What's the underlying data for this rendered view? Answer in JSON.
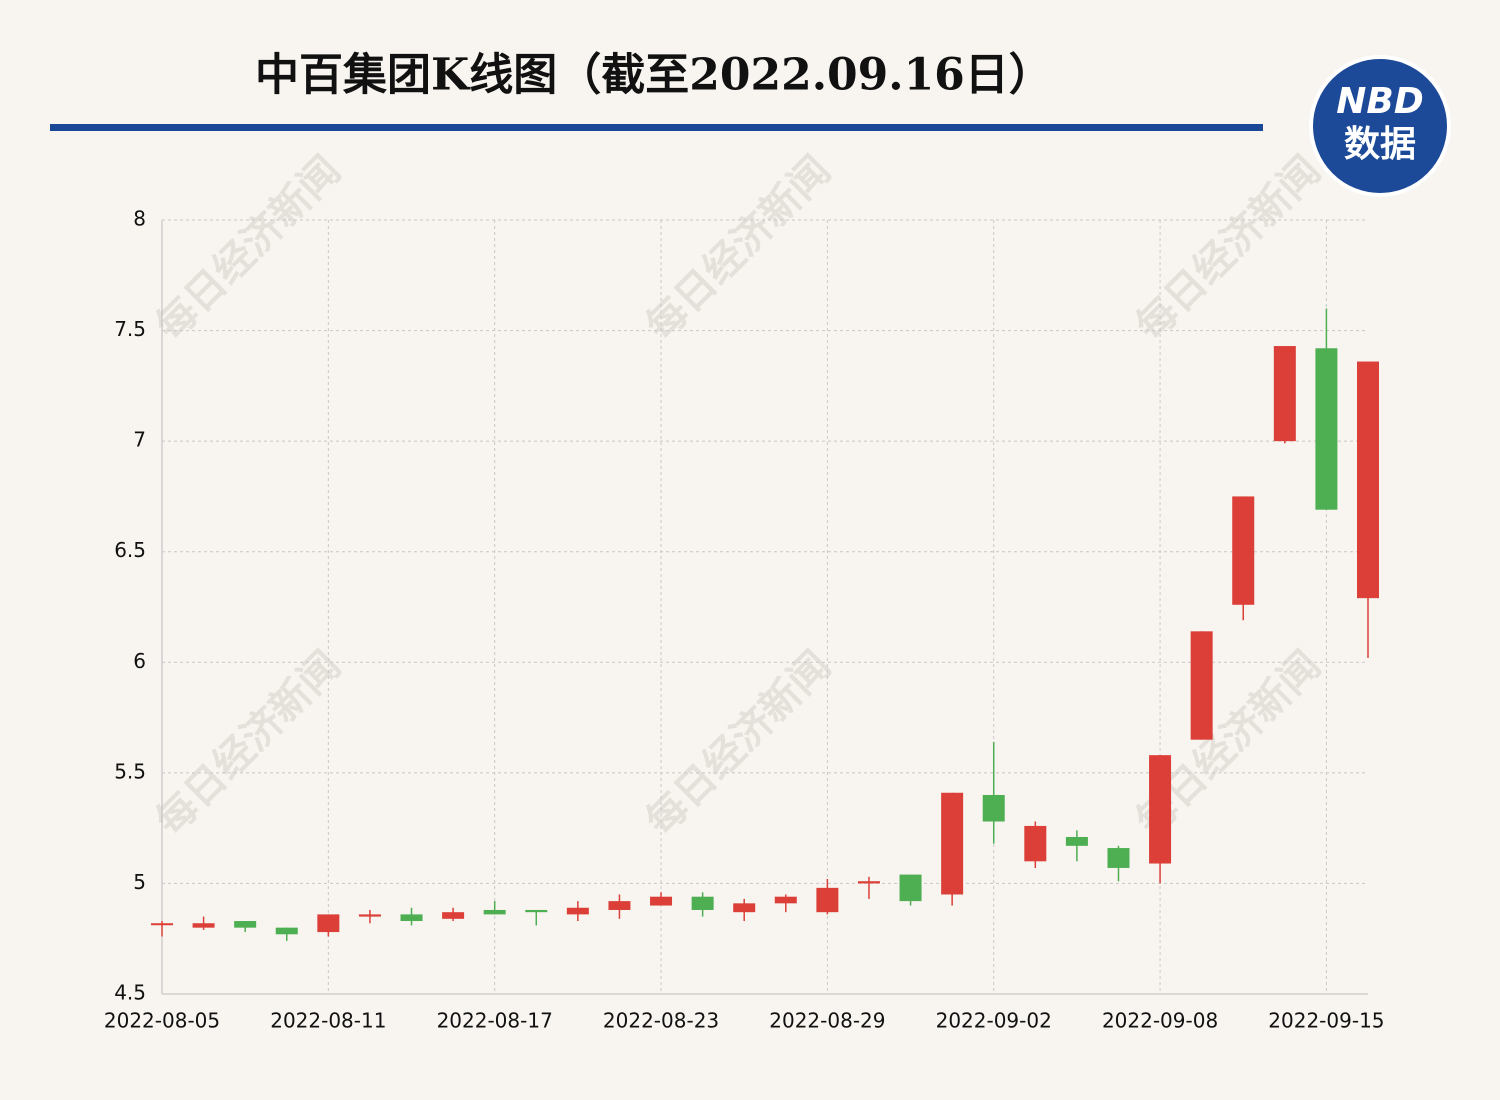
{
  "chart_data": {
    "type": "candlestick",
    "title": "中百集团K线图（截至2022.09.16日）",
    "logo": {
      "top": "NBD",
      "bottom": "数据"
    },
    "watermark": "每日经济新闻",
    "categories": [
      "2022-08-05",
      null,
      null,
      null,
      "2022-08-11",
      null,
      null,
      null,
      "2022-08-17",
      null,
      null,
      null,
      "2022-08-23",
      null,
      null,
      null,
      "2022-08-29",
      null,
      null,
      null,
      "2022-09-02",
      null,
      null,
      null,
      "2022-09-08",
      null,
      null,
      null,
      "2022-09-15",
      null
    ],
    "open": [
      4.82,
      4.8,
      4.83,
      4.8,
      4.78,
      4.85,
      4.86,
      4.84,
      4.88,
      4.88,
      4.86,
      4.88,
      4.9,
      4.94,
      4.87,
      4.91,
      4.87,
      5.0,
      5.04,
      4.95,
      5.4,
      5.1,
      5.21,
      5.16,
      5.09,
      5.65,
      6.26,
      7.0,
      7.42,
      6.29
    ],
    "high": [
      4.83,
      4.85,
      4.83,
      4.8,
      4.86,
      4.88,
      4.89,
      4.89,
      4.92,
      4.88,
      4.92,
      4.95,
      4.96,
      4.96,
      4.93,
      4.95,
      5.02,
      5.03,
      5.04,
      5.41,
      5.64,
      5.28,
      5.24,
      5.17,
      5.58,
      6.14,
      6.75,
      7.43,
      7.6,
      7.36
    ],
    "low": [
      4.76,
      4.79,
      4.78,
      4.74,
      4.76,
      4.82,
      4.81,
      4.83,
      4.86,
      4.81,
      4.83,
      4.84,
      4.9,
      4.85,
      4.83,
      4.87,
      4.86,
      4.93,
      4.9,
      4.9,
      5.18,
      5.07,
      5.1,
      5.01,
      5.0,
      5.65,
      6.19,
      6.99,
      6.69,
      6.02
    ],
    "close": [
      4.82,
      4.82,
      4.8,
      4.77,
      4.86,
      4.86,
      4.83,
      4.87,
      4.86,
      4.87,
      4.89,
      4.92,
      4.94,
      4.88,
      4.91,
      4.94,
      4.98,
      5.01,
      4.92,
      5.41,
      5.28,
      5.26,
      5.17,
      5.07,
      5.58,
      6.14,
      6.75,
      7.43,
      6.69,
      7.36
    ],
    "up_color": "#db3f38",
    "down_color": "#4dae52",
    "ylim": [
      4.5,
      8
    ],
    "yticks": [
      4.5,
      5,
      5.5,
      6,
      6.5,
      7,
      7.5,
      8
    ],
    "grid": true
  }
}
